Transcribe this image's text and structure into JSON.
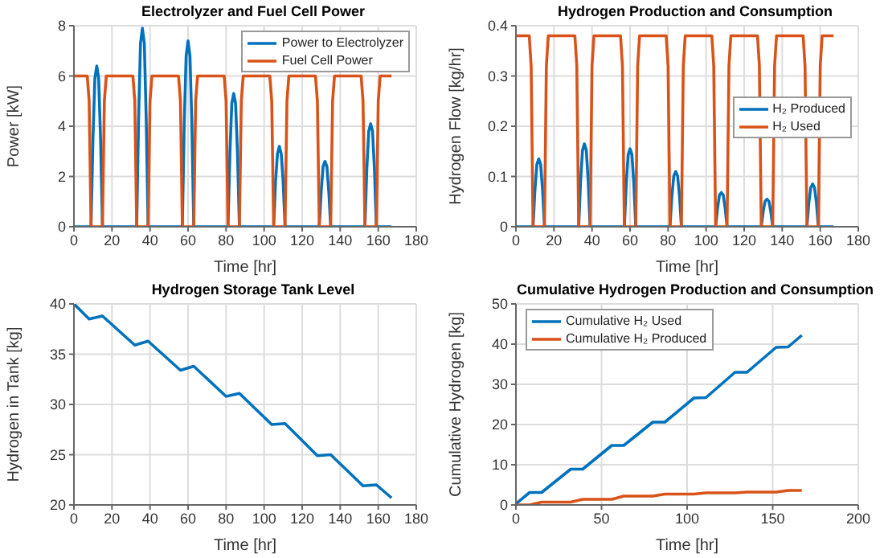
{
  "chart_data": [
    {
      "type": "line",
      "title": "Electrolyzer and Fuel Cell Power",
      "xlabel": "Time [hr]",
      "ylabel": "Power [kW]",
      "xlim": [
        0,
        180
      ],
      "xticks": [
        0,
        20,
        40,
        60,
        80,
        100,
        120,
        140,
        160,
        180
      ],
      "ylim": [
        0,
        8
      ],
      "yticks": [
        0,
        2,
        4,
        6,
        8
      ],
      "grid": true,
      "legend": "top right",
      "series": [
        {
          "name": "Power to Electrolyzer",
          "color": "#0072bd",
          "x": [
            0,
            9,
            10,
            11,
            12,
            13,
            14,
            15,
            33,
            34,
            35,
            36,
            37,
            38,
            39,
            57,
            58,
            59,
            60,
            61,
            62,
            63,
            81,
            82,
            83,
            84,
            85,
            86,
            87,
            105,
            106,
            107,
            108,
            109,
            110,
            111,
            129,
            130,
            131,
            132,
            133,
            134,
            135,
            153,
            154,
            155,
            156,
            157,
            158,
            159,
            167
          ],
          "values": [
            0,
            0,
            3.5,
            5.9,
            6.4,
            5.9,
            3.5,
            0,
            0,
            4.3,
            7.3,
            7.9,
            7.3,
            4.3,
            0,
            0,
            4.1,
            6.8,
            7.4,
            6.8,
            4.1,
            0,
            0,
            2.9,
            4.9,
            5.3,
            4.9,
            2.9,
            0,
            0,
            1.8,
            2.9,
            3.2,
            2.9,
            1.8,
            0,
            0,
            1.4,
            2.4,
            2.6,
            2.4,
            1.4,
            0,
            0,
            2.3,
            3.8,
            4.1,
            3.8,
            2.3,
            0,
            0
          ]
        },
        {
          "name": "Fuel Cell Power",
          "color": "#d95319",
          "x": [
            0,
            7,
            8,
            9,
            15,
            16,
            17,
            31,
            32,
            33,
            39,
            40,
            41,
            55,
            56,
            57,
            63,
            64,
            65,
            79,
            80,
            81,
            87,
            88,
            89,
            103,
            104,
            105,
            111,
            112,
            113,
            127,
            128,
            129,
            135,
            136,
            137,
            151,
            152,
            153,
            159,
            160,
            161,
            167
          ],
          "values": [
            6,
            6,
            5,
            0,
            0,
            5,
            6,
            6,
            5,
            0,
            0,
            5,
            6,
            6,
            5,
            0,
            0,
            5,
            6,
            6,
            5,
            0,
            0,
            5,
            6,
            6,
            5,
            0,
            0,
            5,
            6,
            6,
            5,
            0,
            0,
            5,
            6,
            6,
            5,
            0,
            0,
            5,
            6,
            6
          ]
        }
      ]
    },
    {
      "type": "line",
      "title": "Hydrogen Production and Consumption",
      "xlabel": "Time [hr]",
      "ylabel": "Hydrogen Flow [kg/hr]",
      "xlim": [
        0,
        180
      ],
      "xticks": [
        0,
        20,
        40,
        60,
        80,
        100,
        120,
        140,
        160,
        180
      ],
      "ylim": [
        0,
        0.4
      ],
      "yticks": [
        0,
        0.1,
        0.2,
        0.3,
        0.4
      ],
      "grid": true,
      "legend": "right",
      "series": [
        {
          "name": "H₂ Produced",
          "color": "#0072bd",
          "x": [
            0,
            9,
            10,
            11,
            12,
            13,
            14,
            15,
            33,
            34,
            35,
            36,
            37,
            38,
            39,
            57,
            58,
            59,
            60,
            61,
            62,
            63,
            81,
            82,
            83,
            84,
            85,
            86,
            87,
            105,
            106,
            107,
            108,
            109,
            110,
            111,
            129,
            130,
            131,
            132,
            133,
            134,
            135,
            153,
            154,
            155,
            156,
            157,
            158,
            159,
            167
          ],
          "values": [
            0,
            0,
            0.074,
            0.124,
            0.135,
            0.124,
            0.074,
            0,
            0,
            0.091,
            0.152,
            0.165,
            0.152,
            0.091,
            0,
            0,
            0.085,
            0.143,
            0.155,
            0.143,
            0.085,
            0,
            0,
            0.061,
            0.101,
            0.11,
            0.101,
            0.061,
            0,
            0,
            0.037,
            0.063,
            0.068,
            0.063,
            0.037,
            0,
            0,
            0.03,
            0.051,
            0.055,
            0.051,
            0.03,
            0,
            0,
            0.047,
            0.078,
            0.085,
            0.078,
            0.047,
            0,
            0
          ]
        },
        {
          "name": "H₂ Used",
          "color": "#d95319",
          "x": [
            0,
            7,
            8,
            9,
            15,
            16,
            17,
            31,
            32,
            33,
            39,
            40,
            41,
            55,
            56,
            57,
            63,
            64,
            65,
            79,
            80,
            81,
            87,
            88,
            89,
            103,
            104,
            105,
            111,
            112,
            113,
            127,
            128,
            129,
            135,
            136,
            137,
            151,
            152,
            153,
            159,
            160,
            161,
            167
          ],
          "values": [
            0.38,
            0.38,
            0.32,
            0,
            0,
            0.32,
            0.38,
            0.38,
            0.32,
            0,
            0,
            0.32,
            0.38,
            0.38,
            0.32,
            0,
            0,
            0.32,
            0.38,
            0.38,
            0.32,
            0,
            0,
            0.32,
            0.38,
            0.38,
            0.32,
            0,
            0,
            0.32,
            0.38,
            0.38,
            0.32,
            0,
            0,
            0.32,
            0.38,
            0.38,
            0.32,
            0,
            0,
            0.32,
            0.38,
            0.38
          ]
        }
      ]
    },
    {
      "type": "line",
      "title": "Hydrogen Storage Tank Level",
      "xlabel": "Time [hr]",
      "ylabel": "Hydrogen in Tank [kg]",
      "xlim": [
        0,
        180
      ],
      "xticks": [
        0,
        20,
        40,
        60,
        80,
        100,
        120,
        140,
        160,
        180
      ],
      "ylim": [
        20,
        40
      ],
      "yticks": [
        20,
        25,
        30,
        35,
        40
      ],
      "grid": true,
      "series": [
        {
          "color": "#0072bd",
          "x": [
            0,
            8,
            15,
            32,
            39,
            56,
            63,
            80,
            87,
            104,
            111,
            128,
            135,
            152,
            159,
            167
          ],
          "values": [
            40,
            38.5,
            38.8,
            35.9,
            36.3,
            33.4,
            33.8,
            30.8,
            31.1,
            28,
            28.1,
            24.9,
            25,
            21.9,
            22,
            20.7
          ]
        }
      ]
    },
    {
      "type": "line",
      "title": "Cumulative Hydrogen Production and Consumption",
      "xlabel": "Time [hr]",
      "ylabel": "Cumulative Hydrogen [kg]",
      "xlim": [
        0,
        200
      ],
      "xticks": [
        0,
        50,
        100,
        150,
        200
      ],
      "ylim": [
        0,
        50
      ],
      "yticks": [
        0,
        10,
        20,
        30,
        40,
        50
      ],
      "grid": true,
      "legend": "top left",
      "series": [
        {
          "name": "Cumulative H₂ Used",
          "color": "#0072bd",
          "x": [
            0,
            8,
            15,
            32,
            39,
            56,
            63,
            80,
            87,
            104,
            111,
            128,
            135,
            152,
            159,
            167
          ],
          "values": [
            0.3,
            3.1,
            3.1,
            8.9,
            8.9,
            14.8,
            14.8,
            20.6,
            20.6,
            26.6,
            26.7,
            33,
            33,
            39.2,
            39.3,
            42.2
          ]
        },
        {
          "name": "Cumulative H₂ Produced",
          "color": "#d95319",
          "x": [
            0,
            8,
            15,
            32,
            39,
            56,
            63,
            80,
            87,
            104,
            111,
            128,
            135,
            152,
            159,
            167
          ],
          "values": [
            0,
            0,
            0.7,
            0.7,
            1.4,
            1.4,
            2.2,
            2.2,
            2.7,
            2.7,
            3,
            3,
            3.2,
            3.2,
            3.6,
            3.6
          ]
        }
      ]
    }
  ]
}
